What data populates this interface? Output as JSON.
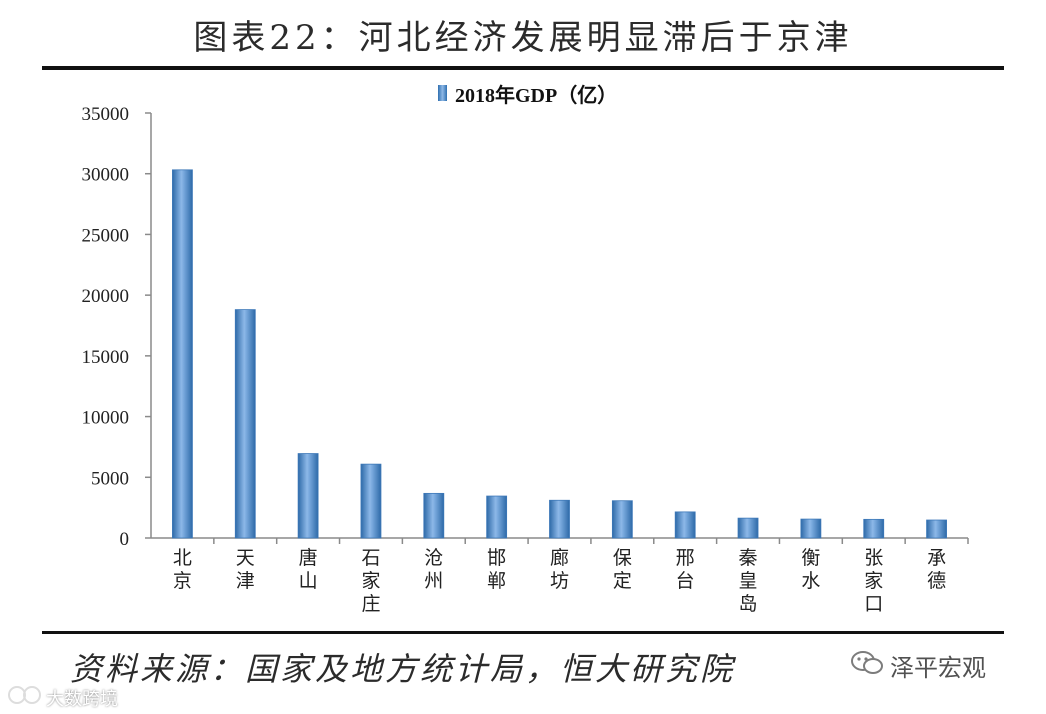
{
  "figure": {
    "title": "图表22：河北经济发展明显滞后于京津",
    "source": "资料来源：国家及地方统计局，恒大研究院",
    "watermark_right": "泽平宏观",
    "watermark_left": "大数跨境",
    "watermark_right_icon": "wechat-icon",
    "watermark_left_icon": "logo-icon"
  },
  "chart_data": {
    "type": "bar",
    "legend": [
      "2018年GDP（亿）"
    ],
    "legend_placement": "top-center",
    "categories": [
      "北京",
      "天津",
      "唐山",
      "石家庄",
      "沧州",
      "邯郸",
      "廊坊",
      "保定",
      "邢台",
      "秦皇岛",
      "衡水",
      "张家口",
      "承德"
    ],
    "series": [
      {
        "name": "2018年GDP（亿）",
        "values": [
          30320,
          18810,
          6955,
          6083,
          3676,
          3455,
          3108,
          3070,
          2150,
          1636,
          1558,
          1536,
          1481
        ]
      }
    ],
    "ylim": [
      0,
      35000
    ],
    "yticks": [
      0,
      5000,
      10000,
      15000,
      20000,
      25000,
      30000,
      35000
    ],
    "grid": false,
    "bar_color": "#4a86c8"
  }
}
